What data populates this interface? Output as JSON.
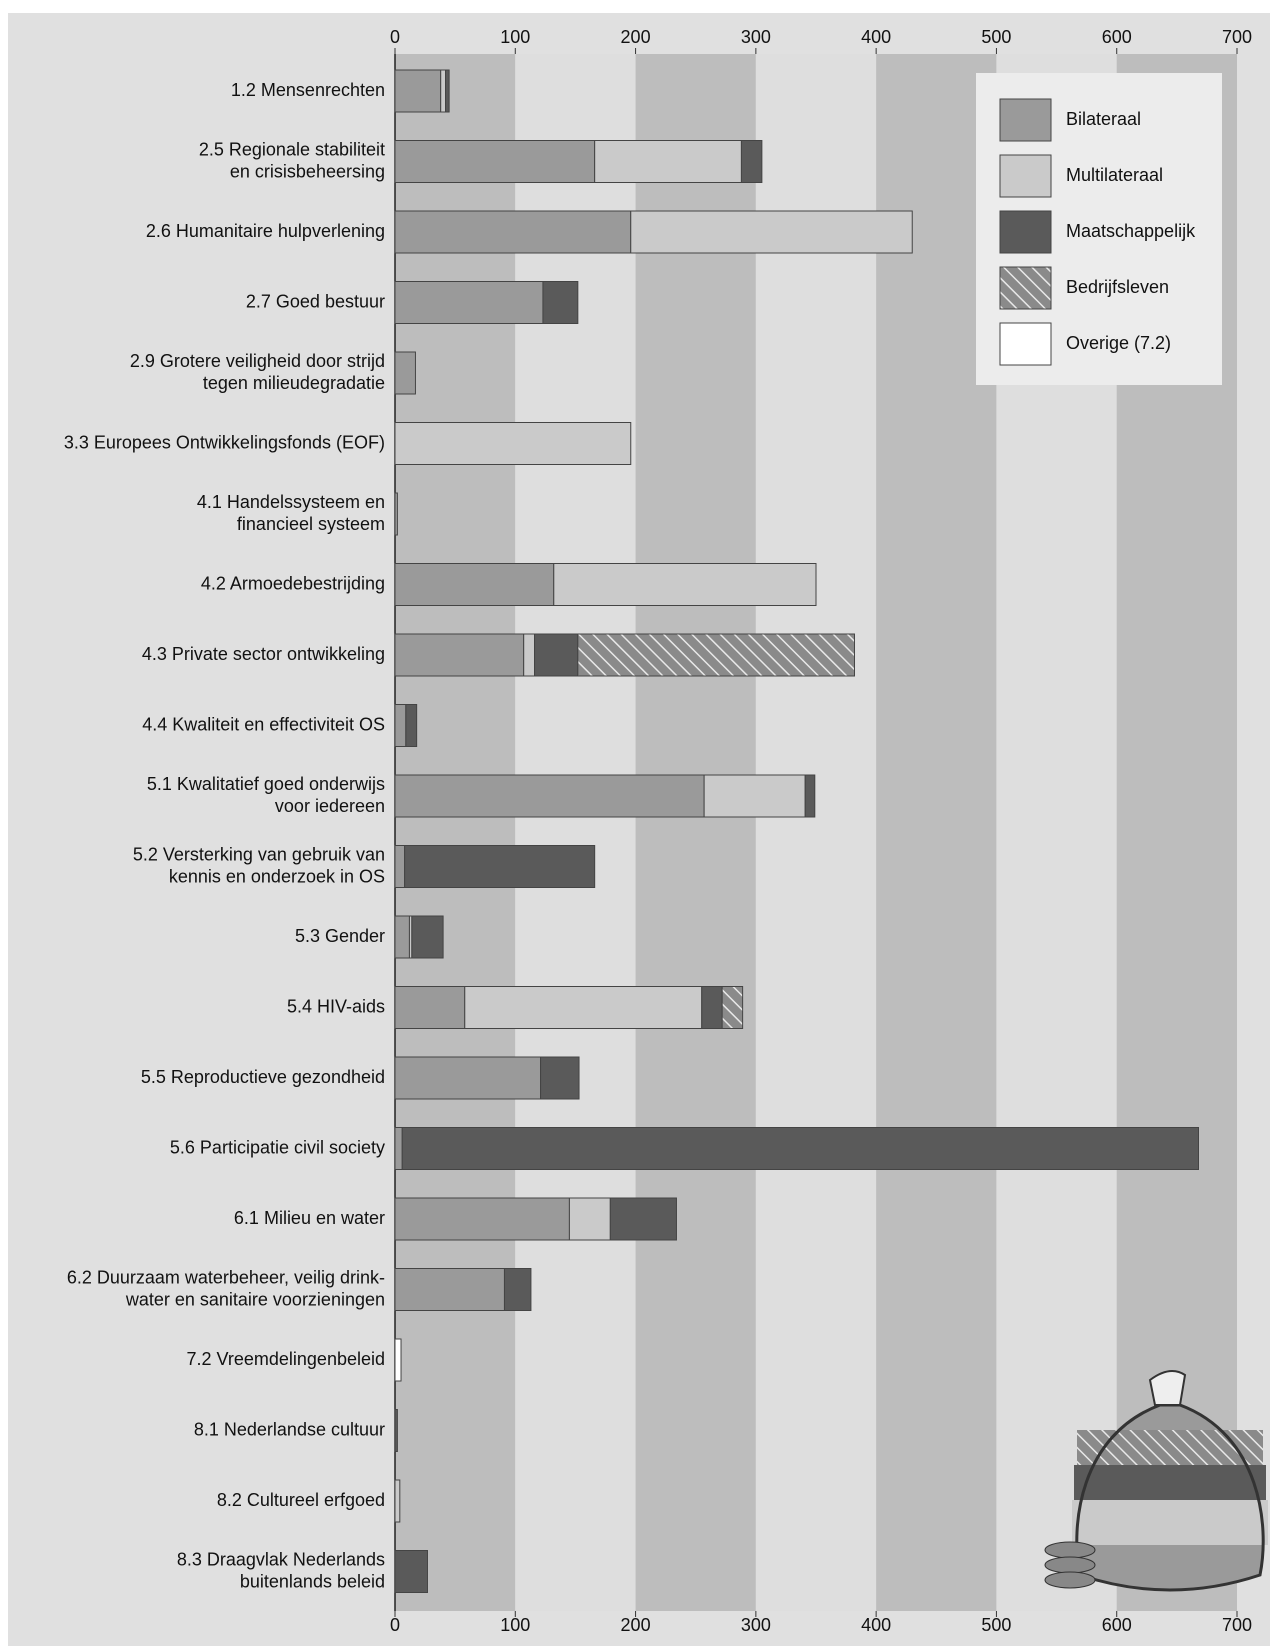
{
  "chart_data": {
    "type": "stacked-bar",
    "categories": [
      "1.2 Mensenrechten",
      "2.5 Regionale stabiliteit\nen crisisbeheersing",
      "2.6 Humanitaire hulpverlening",
      "2.7 Goed bestuur",
      "2.9 Grotere veiligheid door strijd\ntegen milieudegradatie",
      "3.3 Europees Ontwikkelingsfonds (EOF)",
      "4.1 Handelssysteem en\nfinancieel systeem",
      "4.2 Armoedebestrijding",
      "4.3 Private sector ontwikkeling",
      "4.4 Kwaliteit en effectiviteit OS",
      "5.1 Kwalitatief goed onderwijs\nvoor iedereen",
      "5.2 Versterking van gebruik van\nkennis en onderzoek in OS",
      "5.3 Gender",
      "5.4 HIV-aids",
      "5.5 Reproductieve gezondheid",
      "5.6 Participatie civil society",
      "6.1 Milieu en water",
      "6.2 Duurzaam waterbeheer, veilig drink-\nwater en sanitaire voorzieningen",
      "7.2 Vreemdelingenbeleid",
      "8.1 Nederlandse cultuur",
      "8.2 Cultureel erfgoed",
      "8.3 Draagvlak Nederlands\nbuitenlands beleid"
    ],
    "series": [
      {
        "name": "Bilateraal",
        "color": "#9a9a9a",
        "values": [
          38,
          166,
          196,
          123,
          17,
          null,
          2,
          132,
          107,
          9,
          257,
          8,
          12,
          58,
          121,
          6,
          145,
          91,
          null,
          null,
          null,
          null
        ]
      },
      {
        "name": "Multilateraal",
        "color": "#cacaca",
        "values": [
          4,
          122,
          234,
          null,
          null,
          196,
          null,
          218,
          9,
          null,
          84,
          null,
          2,
          197,
          null,
          null,
          34,
          null,
          null,
          null,
          4,
          null
        ]
      },
      {
        "name": "Maatschappelijk",
        "color": "#5a5a5a",
        "values": [
          3,
          17,
          null,
          29,
          null,
          null,
          null,
          null,
          36,
          9,
          8,
          158,
          26,
          17,
          32,
          662,
          55,
          22,
          null,
          2,
          null,
          27
        ]
      },
      {
        "name": "Bedrijfsleven",
        "color": "#8a8a8a",
        "hatch": true,
        "values": [
          null,
          null,
          null,
          null,
          null,
          null,
          null,
          null,
          230,
          null,
          null,
          null,
          null,
          17,
          null,
          null,
          null,
          null,
          null,
          null,
          null,
          null
        ]
      },
      {
        "name": "Overige (7.2)",
        "color": "#ffffff",
        "values": [
          null,
          null,
          null,
          null,
          null,
          null,
          null,
          null,
          null,
          null,
          null,
          null,
          null,
          null,
          null,
          null,
          null,
          null,
          5,
          null,
          null,
          null
        ]
      }
    ],
    "xlim": [
      0,
      700
    ],
    "xticks": [
      0,
      100,
      200,
      300,
      400,
      500,
      600,
      700
    ],
    "band_colors": [
      "#bdbdbd",
      "#dedede"
    ],
    "legend": "top-right"
  }
}
